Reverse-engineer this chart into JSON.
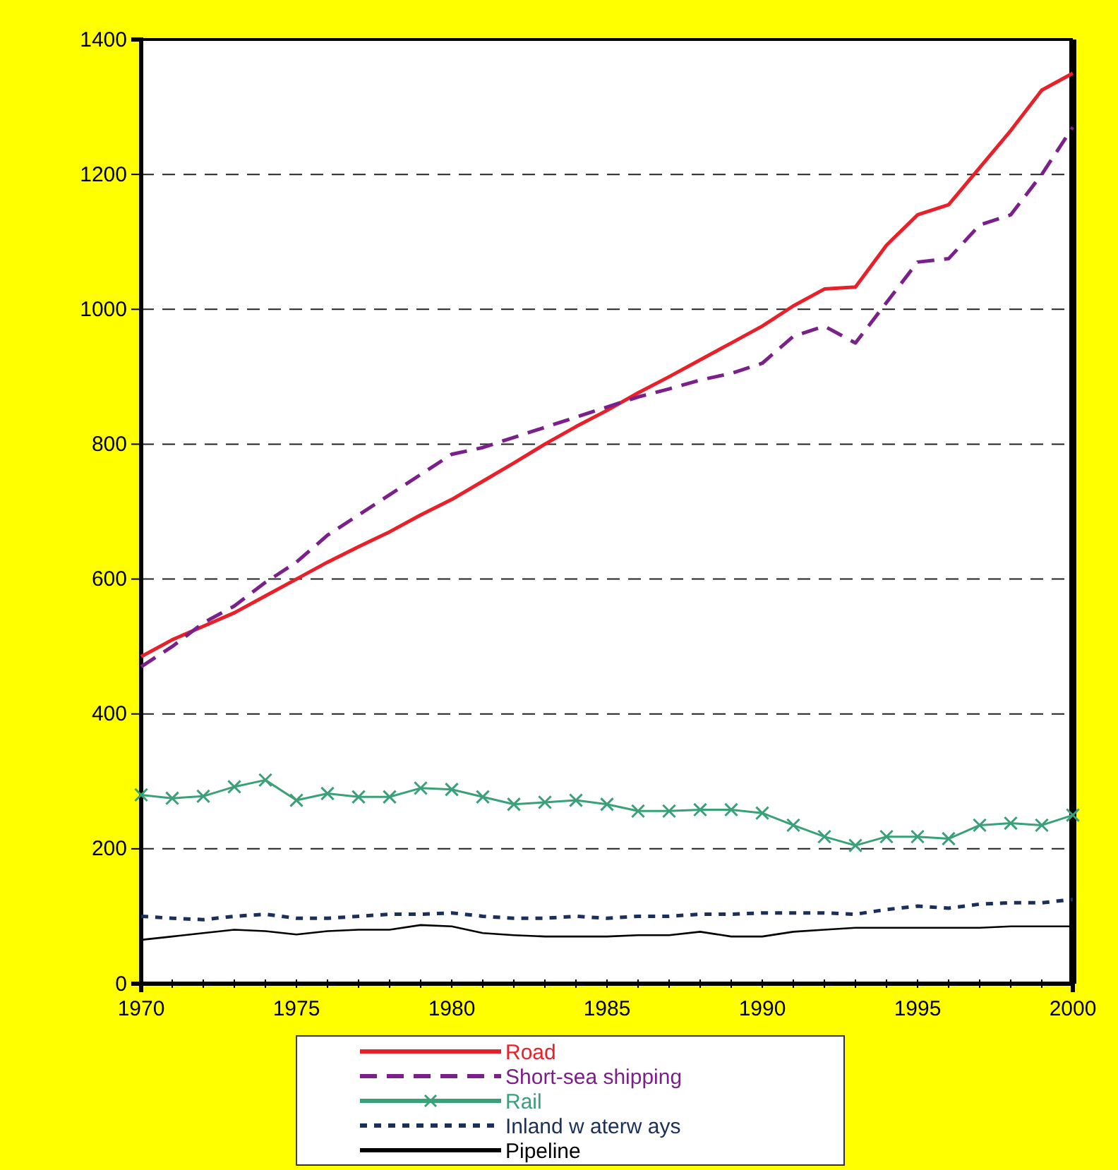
{
  "chart_data": {
    "type": "line",
    "x": [
      1970,
      1971,
      1972,
      1973,
      1974,
      1975,
      1976,
      1977,
      1978,
      1979,
      1980,
      1981,
      1982,
      1983,
      1984,
      1985,
      1986,
      1987,
      1988,
      1989,
      1990,
      1991,
      1992,
      1993,
      1994,
      1995,
      1996,
      1997,
      1998,
      1999,
      2000
    ],
    "xlim": [
      1970,
      2000
    ],
    "xticks": [
      1970,
      {
        "value": 1971,
        "label": null
      },
      {
        "value": 1972,
        "label": null
      },
      {
        "value": 1973,
        "label": null
      },
      {
        "value": 1974,
        "label": null
      },
      1975,
      {
        "value": 1976,
        "label": null
      },
      {
        "value": 1977,
        "label": null
      },
      {
        "value": 1978,
        "label": null
      },
      {
        "value": 1979,
        "label": null
      },
      1980,
      {
        "value": 1981,
        "label": null
      },
      {
        "value": 1982,
        "label": null
      },
      {
        "value": 1983,
        "label": null
      },
      {
        "value": 1984,
        "label": null
      },
      1985,
      {
        "value": 1986,
        "label": null
      },
      {
        "value": 1987,
        "label": null
      },
      {
        "value": 1988,
        "label": null
      },
      {
        "value": 1989,
        "label": null
      },
      1990,
      {
        "value": 1991,
        "label": null
      },
      {
        "value": 1992,
        "label": null
      },
      {
        "value": 1993,
        "label": null
      },
      {
        "value": 1994,
        "label": null
      },
      1995,
      {
        "value": 1996,
        "label": null
      },
      {
        "value": 1997,
        "label": null
      },
      {
        "value": 1998,
        "label": null
      },
      {
        "value": 1999,
        "label": null
      },
      2000
    ],
    "ylim": [
      0,
      1400
    ],
    "yticks": [
      0,
      200,
      400,
      600,
      800,
      1000,
      1200,
      1400
    ],
    "grid": "y",
    "legend": "bottom",
    "series": [
      {
        "name": "Road",
        "color": "#e8202a",
        "line_style": "solid",
        "marker": "none",
        "values": [
          485,
          510,
          530,
          550,
          575,
          600,
          625,
          648,
          670,
          695,
          718,
          745,
          772,
          800,
          826,
          850,
          876,
          900,
          925,
          950,
          975,
          1005,
          1030,
          1033,
          1095,
          1140,
          1155,
          1210,
          1265,
          1325,
          1350
        ]
      },
      {
        "name": "Short-sea shipping",
        "color": "#7b1f8a",
        "line_style": "dashed",
        "marker": "none",
        "values": [
          470,
          500,
          535,
          560,
          595,
          625,
          665,
          695,
          725,
          755,
          785,
          795,
          810,
          825,
          840,
          855,
          870,
          882,
          895,
          905,
          920,
          960,
          975,
          950,
          1010,
          1070,
          1075,
          1125,
          1140,
          1200,
          1270
        ]
      },
      {
        "name": "Rail",
        "color": "#3aa078",
        "line_style": "solid",
        "marker": "cross",
        "values": [
          280,
          275,
          278,
          292,
          302,
          272,
          282,
          277,
          277,
          290,
          288,
          277,
          266,
          269,
          272,
          266,
          256,
          256,
          258,
          258,
          253,
          235,
          218,
          205,
          218,
          218,
          215,
          235,
          238,
          235,
          250
        ]
      },
      {
        "name": "Inland w aterw ays",
        "color": "#1a2f5a",
        "line_style": "dotted",
        "marker": "none",
        "values": [
          100,
          97,
          95,
          100,
          103,
          97,
          97,
          100,
          103,
          103,
          105,
          100,
          97,
          97,
          100,
          97,
          100,
          100,
          103,
          103,
          105,
          105,
          105,
          103,
          110,
          115,
          112,
          118,
          120,
          120,
          125
        ]
      },
      {
        "name": "Pipeline",
        "color": "#000000",
        "line_style": "solid",
        "marker": "none",
        "values": [
          65,
          70,
          75,
          80,
          78,
          73,
          78,
          80,
          80,
          87,
          85,
          75,
          72,
          70,
          70,
          70,
          72,
          72,
          77,
          70,
          70,
          77,
          80,
          83,
          83,
          83,
          83,
          83,
          85,
          85,
          85
        ]
      }
    ]
  }
}
